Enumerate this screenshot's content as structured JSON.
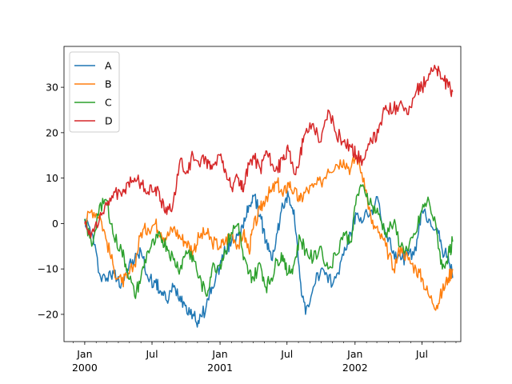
{
  "chart_data": {
    "type": "line",
    "title": "",
    "xlabel": "",
    "ylabel": "",
    "xlim": [
      "1999-11-06",
      "2002-10-14"
    ],
    "ylim": [
      -26,
      39
    ],
    "yticks": [
      -20,
      -10,
      0,
      10,
      20,
      30
    ],
    "xticks": [
      {
        "date": "2000-01-01",
        "labels": [
          "Jan",
          "2000"
        ]
      },
      {
        "date": "2000-07-01",
        "labels": [
          "Jul"
        ]
      },
      {
        "date": "2001-01-01",
        "labels": [
          "Jan",
          "2001"
        ]
      },
      {
        "date": "2001-07-01",
        "labels": [
          "Jul"
        ]
      },
      {
        "date": "2002-01-01",
        "labels": [
          "Jan",
          "2002"
        ]
      },
      {
        "date": "2002-07-01",
        "labels": [
          "Jul"
        ]
      }
    ],
    "grid": false,
    "legend": {
      "position": "top-left"
    },
    "series": [
      {
        "name": "A",
        "color": "#1f77b4",
        "x": [
          "2000-01-01",
          "2000-01-20",
          "2000-02-10",
          "2000-03-01",
          "2000-03-20",
          "2000-04-10",
          "2000-04-25",
          "2000-05-15",
          "2000-06-01",
          "2000-06-20",
          "2000-07-10",
          "2000-07-25",
          "2000-08-10",
          "2000-08-28",
          "2000-09-15",
          "2000-10-01",
          "2000-10-20",
          "2000-11-05",
          "2000-11-25",
          "2000-12-10",
          "2001-01-01",
          "2001-01-15",
          "2001-02-01",
          "2001-02-20",
          "2001-03-05",
          "2001-03-20",
          "2001-04-01",
          "2001-04-20",
          "2001-05-05",
          "2001-05-20",
          "2001-06-05",
          "2001-06-20",
          "2001-07-05",
          "2001-07-20",
          "2001-08-05",
          "2001-08-20",
          "2001-09-10",
          "2001-10-01",
          "2001-10-20",
          "2001-11-10",
          "2001-12-01",
          "2001-12-20",
          "2002-01-05",
          "2002-01-25",
          "2002-02-15",
          "2002-03-05",
          "2002-03-25",
          "2002-04-15",
          "2002-05-05",
          "2002-05-25",
          "2002-06-15",
          "2002-07-01",
          "2002-07-20",
          "2002-08-10",
          "2002-08-25",
          "2002-09-10",
          "2002-09-22"
        ],
        "y": [
          1,
          -2,
          -11,
          -12,
          -11,
          -13,
          -10,
          -8,
          -6,
          -12,
          -13,
          -15,
          -17,
          -14,
          -16,
          -18,
          -20,
          -22,
          -18,
          -14,
          -9,
          -6,
          -4,
          -2,
          -1,
          4,
          6,
          2,
          -4,
          -8,
          -2,
          4,
          6,
          3,
          -12,
          -20,
          -14,
          -10,
          -13,
          -12,
          -7,
          -2,
          2,
          1,
          3,
          5,
          -3,
          -6,
          -8,
          -7,
          -6,
          3,
          1,
          -1,
          -6,
          -7,
          -12
        ]
      },
      {
        "name": "B",
        "color": "#ff7f0e",
        "x": [
          "2000-01-01",
          "2000-01-20",
          "2000-02-10",
          "2000-03-01",
          "2000-03-20",
          "2000-04-10",
          "2000-04-25",
          "2000-05-15",
          "2000-06-01",
          "2000-06-20",
          "2000-07-10",
          "2000-07-25",
          "2000-08-10",
          "2000-08-28",
          "2000-09-15",
          "2000-10-01",
          "2000-10-20",
          "2000-11-05",
          "2000-11-25",
          "2000-12-10",
          "2001-01-01",
          "2001-01-15",
          "2001-02-01",
          "2001-02-20",
          "2001-03-05",
          "2001-03-20",
          "2001-04-01",
          "2001-04-20",
          "2001-05-05",
          "2001-05-20",
          "2001-06-05",
          "2001-06-20",
          "2001-07-05",
          "2001-07-20",
          "2001-08-05",
          "2001-08-20",
          "2001-09-10",
          "2001-10-01",
          "2001-10-20",
          "2001-11-10",
          "2001-12-01",
          "2001-12-20",
          "2002-01-05",
          "2002-01-25",
          "2002-02-15",
          "2002-03-05",
          "2002-03-25",
          "2002-04-15",
          "2002-05-05",
          "2002-05-25",
          "2002-06-15",
          "2002-07-01",
          "2002-07-20",
          "2002-08-10",
          "2002-08-25",
          "2002-09-10",
          "2002-09-22"
        ],
        "y": [
          0,
          3,
          2,
          -4,
          -10,
          -13,
          -12,
          -9,
          -2,
          -1,
          0,
          -2,
          -3,
          -1,
          -3,
          -4,
          -6,
          -3,
          -2,
          -4,
          -5,
          -4,
          -2,
          -5,
          -2,
          -6,
          -1,
          3,
          6,
          7,
          9,
          6,
          9,
          7,
          5,
          7,
          8,
          9,
          12,
          13,
          14,
          12,
          15,
          10,
          0,
          -2,
          -5,
          -10,
          -5,
          -8,
          -10,
          -12,
          -16,
          -18,
          -15,
          -12,
          -10
        ]
      },
      {
        "name": "C",
        "color": "#2ca02c",
        "x": [
          "2000-01-01",
          "2000-01-20",
          "2000-02-10",
          "2000-03-01",
          "2000-03-20",
          "2000-04-10",
          "2000-04-25",
          "2000-05-15",
          "2000-06-01",
          "2000-06-20",
          "2000-07-10",
          "2000-07-25",
          "2000-08-10",
          "2000-08-28",
          "2000-09-15",
          "2000-10-01",
          "2000-10-20",
          "2000-11-05",
          "2000-11-25",
          "2000-12-10",
          "2001-01-01",
          "2001-01-15",
          "2001-02-01",
          "2001-02-20",
          "2001-03-05",
          "2001-03-20",
          "2001-04-01",
          "2001-04-20",
          "2001-05-05",
          "2001-05-20",
          "2001-06-05",
          "2001-06-20",
          "2001-07-05",
          "2001-07-20",
          "2001-08-05",
          "2001-08-20",
          "2001-09-10",
          "2001-10-01",
          "2001-10-20",
          "2001-11-10",
          "2001-12-01",
          "2001-12-20",
          "2002-01-05",
          "2002-01-25",
          "2002-02-15",
          "2002-03-05",
          "2002-03-25",
          "2002-04-15",
          "2002-05-05",
          "2002-05-25",
          "2002-06-15",
          "2002-07-01",
          "2002-07-20",
          "2002-08-10",
          "2002-08-25",
          "2002-09-10",
          "2002-09-22"
        ],
        "y": [
          1,
          -5,
          4,
          5,
          -3,
          -6,
          -10,
          -16,
          -12,
          -6,
          -4,
          -3,
          -5,
          -8,
          -10,
          -6,
          -7,
          -12,
          -16,
          -10,
          -9,
          -6,
          -2,
          0,
          -8,
          -11,
          -12,
          -9,
          -14,
          -12,
          -8,
          -7,
          -11,
          -9,
          -3,
          -6,
          -8,
          -5,
          -10,
          -7,
          -2,
          -4,
          6,
          8,
          4,
          2,
          -2,
          0,
          -5,
          -6,
          -2,
          3,
          5,
          -2,
          -10,
          -7,
          -4
        ]
      },
      {
        "name": "D",
        "color": "#d62728",
        "x": [
          "2000-01-01",
          "2000-01-20",
          "2000-02-10",
          "2000-03-01",
          "2000-03-20",
          "2000-04-10",
          "2000-04-25",
          "2000-05-15",
          "2000-06-01",
          "2000-06-20",
          "2000-07-10",
          "2000-07-25",
          "2000-08-10",
          "2000-08-28",
          "2000-09-15",
          "2000-10-01",
          "2000-10-20",
          "2000-11-05",
          "2000-11-25",
          "2000-12-10",
          "2001-01-01",
          "2001-01-15",
          "2001-02-01",
          "2001-02-20",
          "2001-03-05",
          "2001-03-20",
          "2001-04-01",
          "2001-04-20",
          "2001-05-05",
          "2001-05-20",
          "2001-06-05",
          "2001-06-20",
          "2001-07-05",
          "2001-07-20",
          "2001-08-05",
          "2001-08-20",
          "2001-09-10",
          "2001-10-01",
          "2001-10-20",
          "2001-11-10",
          "2001-12-01",
          "2001-12-20",
          "2002-01-05",
          "2002-01-25",
          "2002-02-15",
          "2002-03-05",
          "2002-03-25",
          "2002-04-15",
          "2002-05-05",
          "2002-05-25",
          "2002-06-15",
          "2002-07-01",
          "2002-07-20",
          "2002-08-10",
          "2002-08-25",
          "2002-09-10",
          "2002-09-22"
        ],
        "y": [
          0,
          -2,
          1,
          4,
          7,
          6,
          9,
          10,
          9,
          7,
          8,
          5,
          2,
          5,
          14,
          11,
          15,
          13,
          14,
          12,
          15,
          12,
          8,
          10,
          7,
          13,
          15,
          12,
          16,
          13,
          12,
          14,
          16,
          11,
          15,
          20,
          22,
          18,
          25,
          20,
          18,
          17,
          15,
          14,
          18,
          20,
          26,
          25,
          27,
          24,
          29,
          30,
          33,
          34,
          32,
          30,
          29
        ]
      }
    ]
  }
}
